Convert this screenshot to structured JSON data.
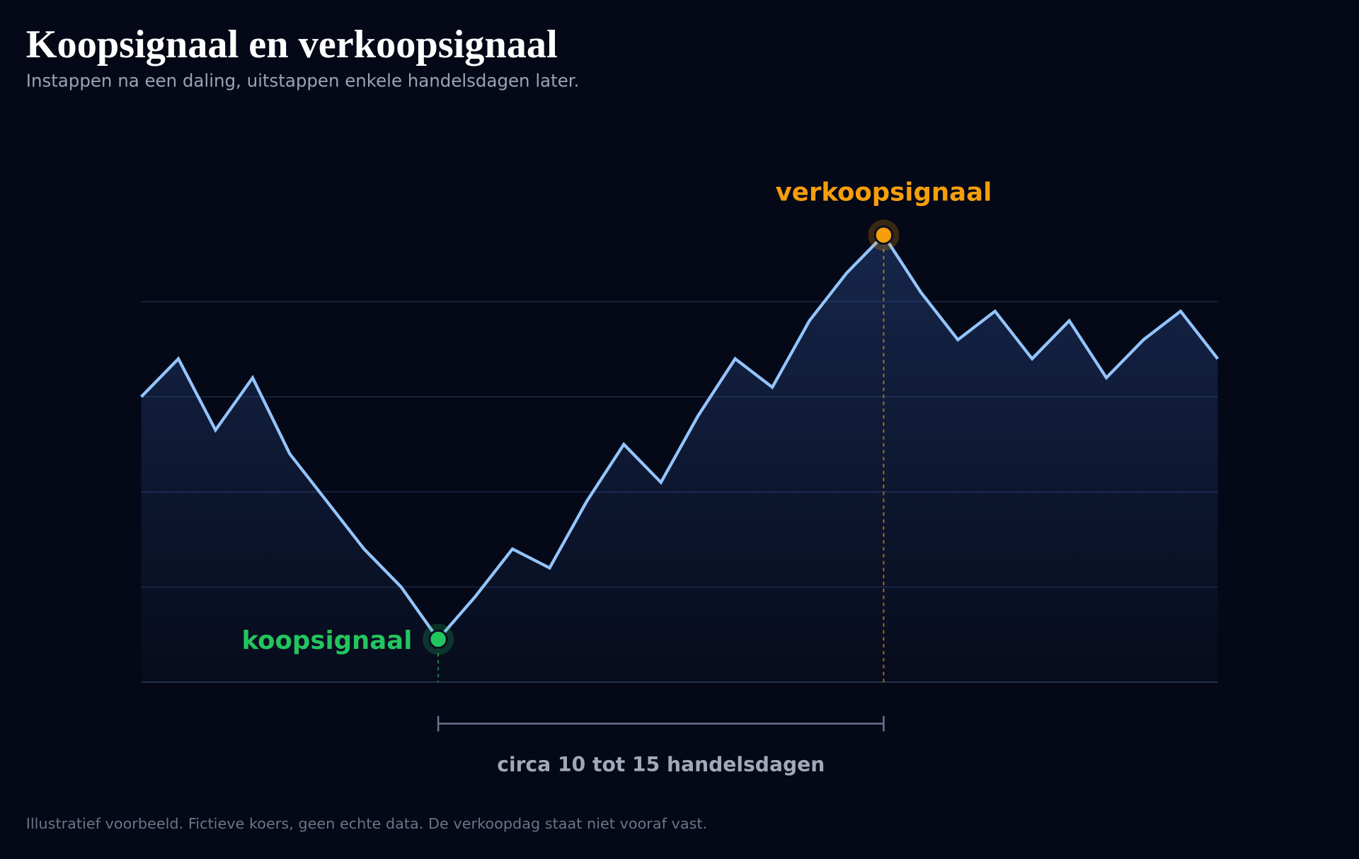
{
  "chart_data": {
    "type": "line",
    "title": "Koopsignaal en verkoopsignaal",
    "subtitle": "Instappen na een daling, uitstappen enkele handelsdagen later.",
    "footnote": "Illustratief voorbeeld. Fictieve koers, geen echte data. De verkoopdag staat niet vooraf vast.",
    "x": [
      0,
      1,
      2,
      3,
      4,
      5,
      6,
      7,
      8,
      9,
      10,
      11,
      12,
      13,
      14,
      15,
      16,
      17,
      18,
      19,
      20,
      21,
      22,
      23,
      24,
      25,
      26,
      27,
      28,
      29
    ],
    "xlim": [
      0,
      29
    ],
    "ylim": [
      0,
      5
    ],
    "yticks": [
      0,
      1,
      2,
      3,
      4
    ],
    "grid": true,
    "series": [
      {
        "color": "#93c5fd",
        "values": [
          3.0,
          3.4,
          2.65,
          3.2,
          2.4,
          1.9,
          1.4,
          1.0,
          0.45,
          0.9,
          1.4,
          1.2,
          1.9,
          2.5,
          2.1,
          2.8,
          3.4,
          3.1,
          3.8,
          4.3,
          4.7,
          4.1,
          3.6,
          3.9,
          3.4,
          3.8,
          3.2,
          3.6,
          3.9,
          3.4
        ]
      }
    ],
    "annotations": [
      {
        "label": "koopsignaal",
        "x": 8,
        "color": "#22c55e"
      },
      {
        "label": "verkoopsignaal",
        "x": 20,
        "color": "#f59e0b"
      }
    ],
    "span": {
      "label": "circa 10 tot 15 handelsdagen",
      "from": 8,
      "to": 20
    }
  }
}
